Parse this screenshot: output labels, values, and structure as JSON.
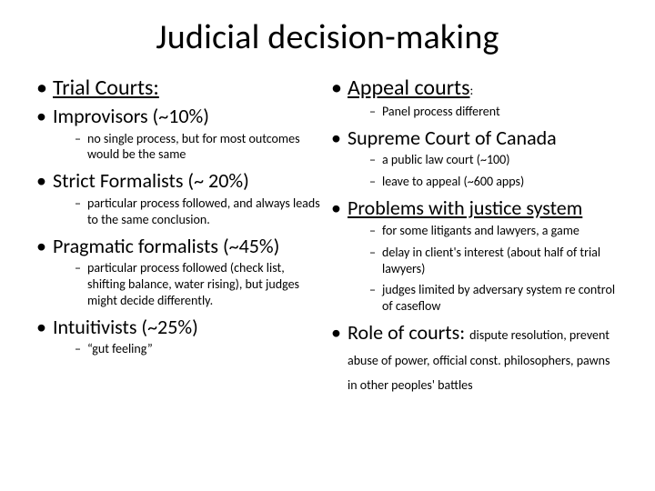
{
  "title": "Judicial decision-making",
  "colors": {
    "background": "#ffffff",
    "text": "#000000"
  },
  "typography": {
    "title_fontsize": 38,
    "lvl1_heading_fontsize": 24,
    "lvl1_fontsize": 22,
    "lvl2_fontsize": 14,
    "inline_note_fontsize": 14,
    "font_family": "Calibri"
  },
  "left": {
    "heading": "Trial Courts:",
    "items": [
      {
        "label": "Improvisors (~10%)",
        "sub": [
          "no single process, but for most outcomes would be the same"
        ]
      },
      {
        "label": "Strict Formalists (~ 20%)",
        "sub": [
          "particular process followed, and always leads to the same conclusion."
        ]
      },
      {
        "label": "Pragmatic formalists (~45%)",
        "sub": [
          "particular process followed (check list, shifting balance, water rising), but judges might decide differently."
        ]
      },
      {
        "label": "Intuitivists (~25%)",
        "sub": [
          "“gut feeling”"
        ]
      }
    ]
  },
  "right": {
    "heading": "Appeal courts",
    "heading_suffix": ":",
    "items": [
      {
        "pre_sub": [
          "Panel process different"
        ],
        "label": "Supreme Court of Canada",
        "sub": [
          "a public law court (~100)",
          "leave to appeal (~600 apps)"
        ]
      },
      {
        "label": "Problems with justice system",
        "sub": [
          "for some litigants and lawyers, a game",
          "delay in client's interest (about half of trial lawyers)",
          "judges limited by adversary system re control of caseflow"
        ]
      },
      {
        "label": "Role of courts:",
        "inline": "dispute resolution, prevent abuse of power, official const. philosophers, pawns in other peoples' battles"
      }
    ]
  }
}
